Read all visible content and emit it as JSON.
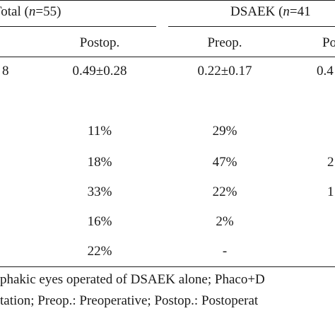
{
  "table": {
    "group_headers": [
      {
        "label": "Total",
        "n_prefix": "(",
        "n_var": "n",
        "n_value": "=55)"
      },
      {
        "label": "DSAEK",
        "n_prefix": "(",
        "n_var": "n",
        "n_value": "=41"
      }
    ],
    "sub_headers": [
      "Postop.",
      "Preop.",
      "Po"
    ],
    "mean_row": [
      "8",
      "0.49±0.28",
      "0.22±0.17",
      "0.4"
    ],
    "rows": [
      {
        "postop": "11%",
        "preop": "29%",
        "edge": ""
      },
      {
        "postop": "18%",
        "preop": "47%",
        "edge": "2"
      },
      {
        "postop": "33%",
        "preop": "22%",
        "edge": "1"
      },
      {
        "postop": "16%",
        "preop": "2%",
        "edge": ""
      },
      {
        "postop": "22%",
        "preop": "-",
        "edge": ""
      }
    ]
  },
  "footnote": {
    "line1": "phakic eyes operated of DSAEK alone; Phaco+D",
    "line2": "tation; Preop.: Preoperative; Postop.: Postoperat"
  }
}
